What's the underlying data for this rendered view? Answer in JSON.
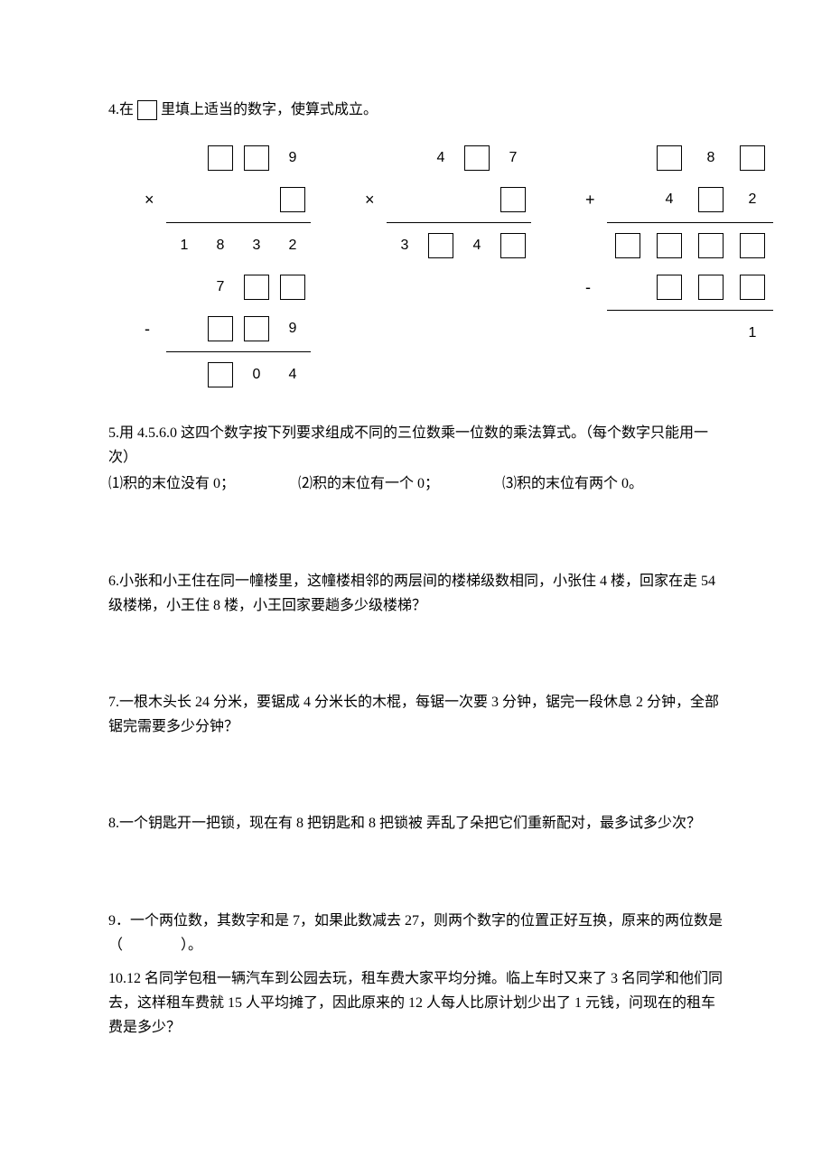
{
  "q4": {
    "intro_before": "4.在",
    "intro_after": "里填上适当的数字，使算式成立。",
    "p1": {
      "r1_c4": "9",
      "r2_op": "×",
      "r3_c1": "1",
      "r3_c2": "8",
      "r3_c3": "3",
      "r3_c4": "2",
      "r4_c2": "7",
      "r5_op": "-",
      "r5_c4": "9",
      "r6_c3": "0",
      "r6_c4": "4"
    },
    "p2": {
      "r1_c2": "4",
      "r1_c4": "7",
      "r2_op": "×",
      "r3_c1": "3",
      "r3_c3": "4"
    },
    "p3": {
      "r1_c3": "8",
      "r2_op": "+",
      "r2_c2": "4",
      "r2_c4": "2",
      "r4_op": "-",
      "r5_c4": "1"
    }
  },
  "q5": {
    "text": "5.用 4.5.6.0 这四个数字按下列要求组成不同的三位数乘一位数的乘法算式。（每个数字只能用一次）",
    "s1": "⑴积的末位没有 0；",
    "s2": "⑵积的末位有一个 0；",
    "s3": "⑶积的末位有两个 0。"
  },
  "q6": "6.小张和小王住在同一幢楼里，这幢楼相邻的两层间的楼梯级数相同，小张住 4 楼，回家在走 54 级楼梯，小王住 8 楼，小王回家要趟多少级楼梯？",
  "q7": "7.一根木头长 24 分米，要锯成 4 分米长的木棍，每锯一次要 3 分钟，锯完一段休息 2 分钟，全部锯完需要多少分钟？",
  "q8": "8.一个钥匙开一把锁，现在有 8 把钥匙和 8 把锁被 弄乱了朵把它们重新配对，最多试多少次？",
  "q9": "9．一个两位数，其数字和是 7，如果此数减去 27，则两个数字的位置正好互换，原来的两位数是（　　　　）。",
  "q10": "10.12 名同学包租一辆汽车到公园去玩，租车费大家平均分摊。临上车时又来了 3 名同学和他们同去，这样租车费就 15 人平均摊了，因此原来的 12 人每人比原计划少出了 1 元钱，问现在的租车费是多少？"
}
